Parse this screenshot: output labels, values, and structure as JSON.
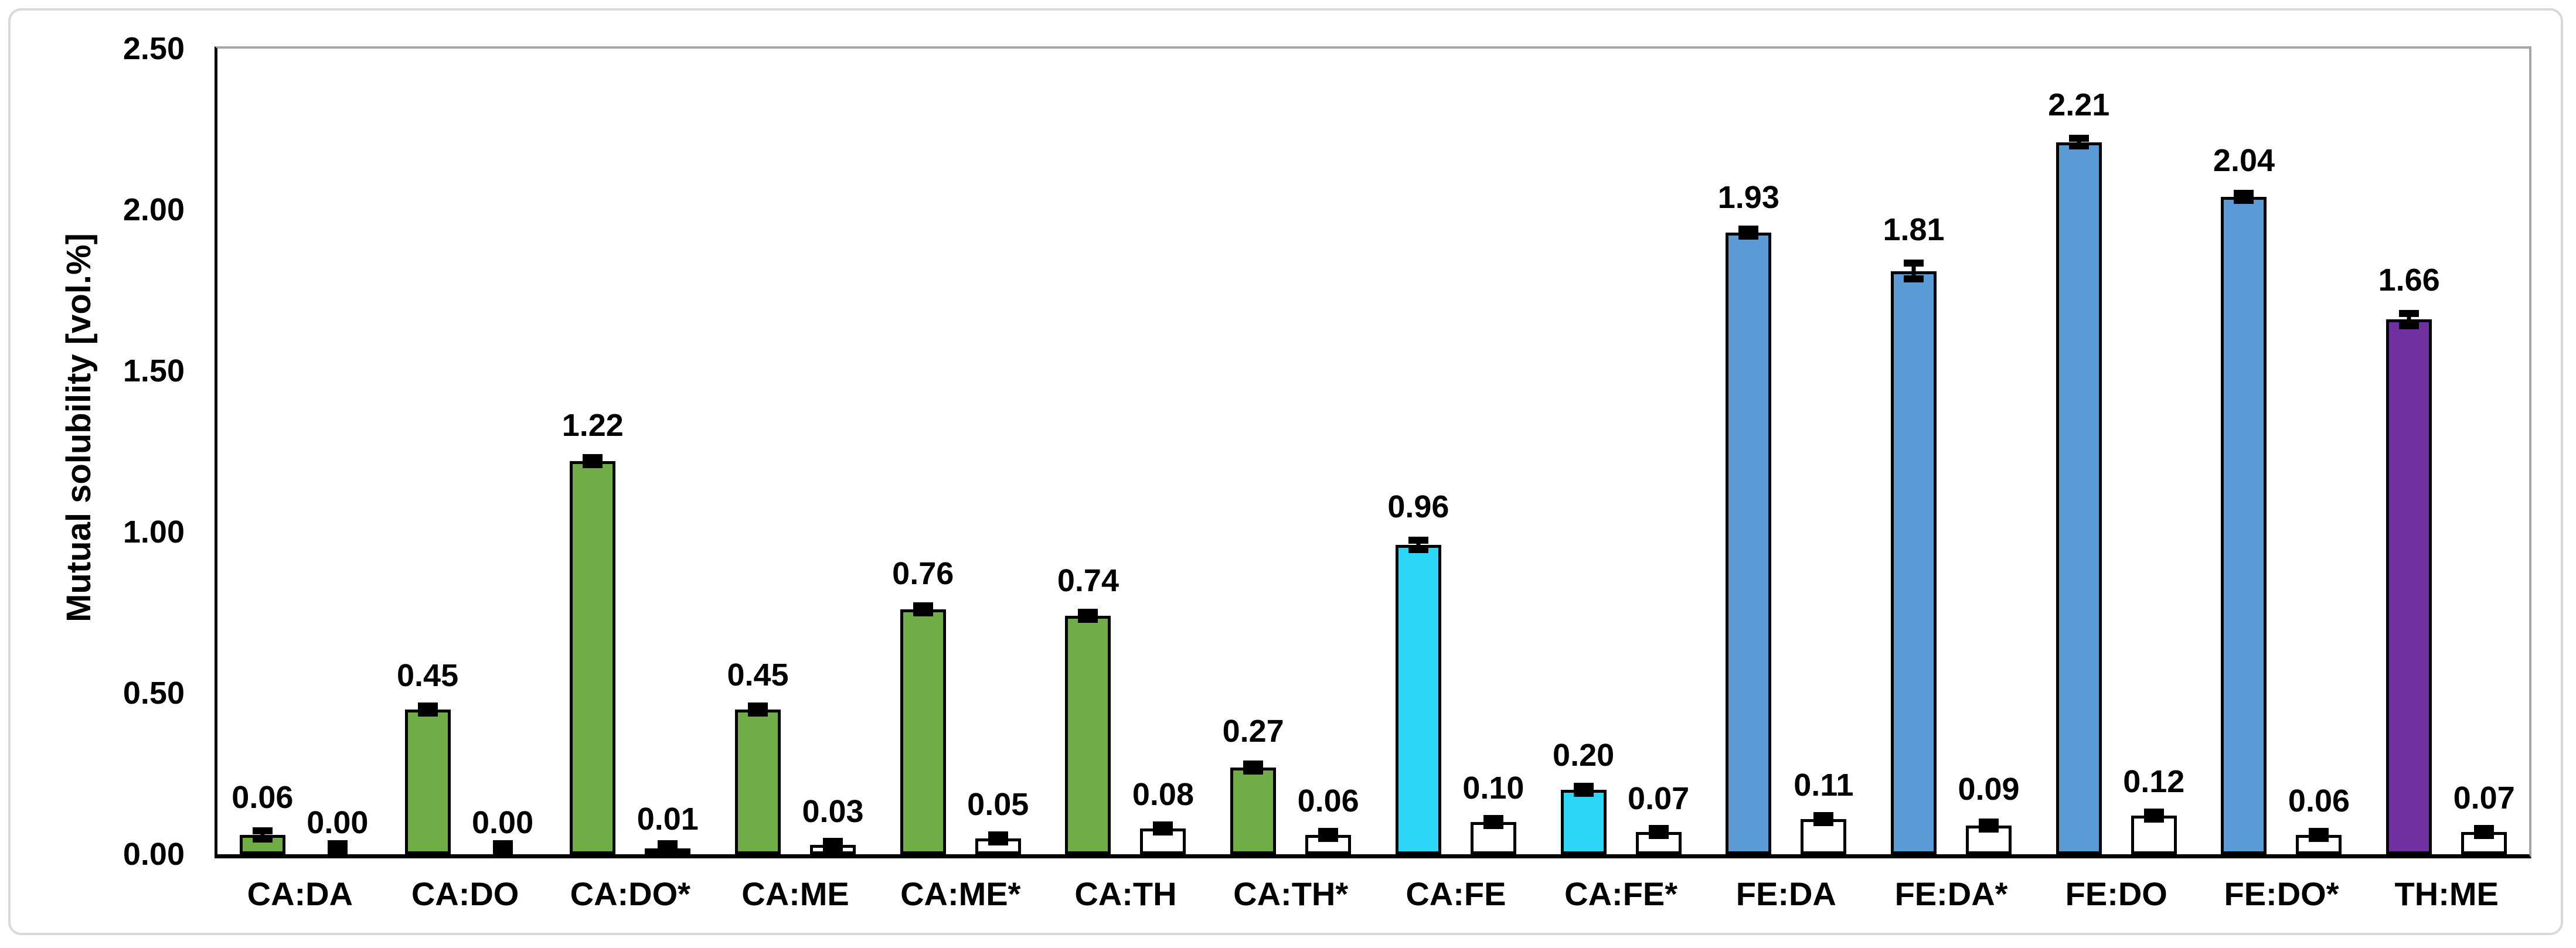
{
  "chart_data": {
    "type": "bar",
    "title": "",
    "xlabel": "",
    "ylabel": "Mutual solubility [vol.%]",
    "ylim": [
      0,
      2.5
    ],
    "grid": false,
    "legend": "none",
    "yticks": [
      {
        "value": 0.0,
        "label": "0.00"
      },
      {
        "value": 0.5,
        "label": "0.50"
      },
      {
        "value": 1.0,
        "label": "1.00"
      },
      {
        "value": 1.5,
        "label": "1.50"
      },
      {
        "value": 2.0,
        "label": "2.00"
      },
      {
        "value": 2.5,
        "label": "2.50"
      }
    ],
    "categories": [
      "CA:DA",
      "CA:DO",
      "CA:DO*",
      "CA:ME",
      "CA:ME*",
      "CA:TH",
      "CA:TH*",
      "CA:FE",
      "CA:FE*",
      "FE:DA",
      "FE:DA*",
      "FE:DO",
      "FE:DO*",
      "TH:ME"
    ],
    "series": [
      {
        "name": "colored-bars",
        "values": [
          0.06,
          0.45,
          1.22,
          0.45,
          0.76,
          0.74,
          0.27,
          0.96,
          0.2,
          1.93,
          1.81,
          2.21,
          2.04,
          1.66
        ],
        "labels": [
          "0.06",
          "0.45",
          "1.22",
          "0.45",
          "0.76",
          "0.74",
          "0.27",
          "0.96",
          "0.20",
          "1.93",
          "1.81",
          "2.21",
          "2.04",
          "1.66"
        ],
        "errors": [
          0.024,
          0.012,
          0.018,
          0.014,
          0.018,
          0.016,
          0.02,
          0.025,
          0.015,
          0.015,
          0.035,
          0.022,
          0.02,
          0.03
        ],
        "fills": [
          "#70AD47",
          "#70AD47",
          "#70AD47",
          "#70AD47",
          "#70AD47",
          "#70AD47",
          "#70AD47",
          "#2BD6F6",
          "#2BD6F6",
          "#5B9BD5",
          "#5B9BD5",
          "#5B9BD5",
          "#5B9BD5",
          "#7030A0"
        ]
      },
      {
        "name": "white-bars",
        "values": [
          0.0,
          0.0,
          0.01,
          0.03,
          0.05,
          0.08,
          0.06,
          0.1,
          0.07,
          0.11,
          0.09,
          0.12,
          0.06,
          0.07
        ],
        "labels": [
          "0.00",
          "0.00",
          "0.01",
          "0.03",
          "0.05",
          "0.08",
          "0.06",
          "0.10",
          "0.07",
          "0.11",
          "0.09",
          "0.12",
          "0.06",
          "0.07"
        ],
        "errors": [
          0.005,
          0.005,
          0.006,
          0.01,
          0.012,
          0.012,
          0.012,
          0.012,
          0.01,
          0.012,
          0.02,
          0.012,
          0.012,
          0.012
        ],
        "fills": [
          "#FFFFFF",
          "#FFFFFF",
          "#FFFFFF",
          "#FFFFFF",
          "#FFFFFF",
          "#FFFFFF",
          "#FFFFFF",
          "#FFFFFF",
          "#FFFFFF",
          "#FFFFFF",
          "#FFFFFF",
          "#FFFFFF",
          "#FFFFFF",
          "#FFFFFF"
        ]
      }
    ],
    "palette": {
      "green": "#70AD47",
      "cyan": "#2BD6F6",
      "blue": "#5B9BD5",
      "purple": "#7030A0",
      "bar_border": "#000000",
      "axis_color": "#000000",
      "plot_frame_gray": "#A6A6A6",
      "figure_border_gray": "#D9D9D9"
    }
  }
}
